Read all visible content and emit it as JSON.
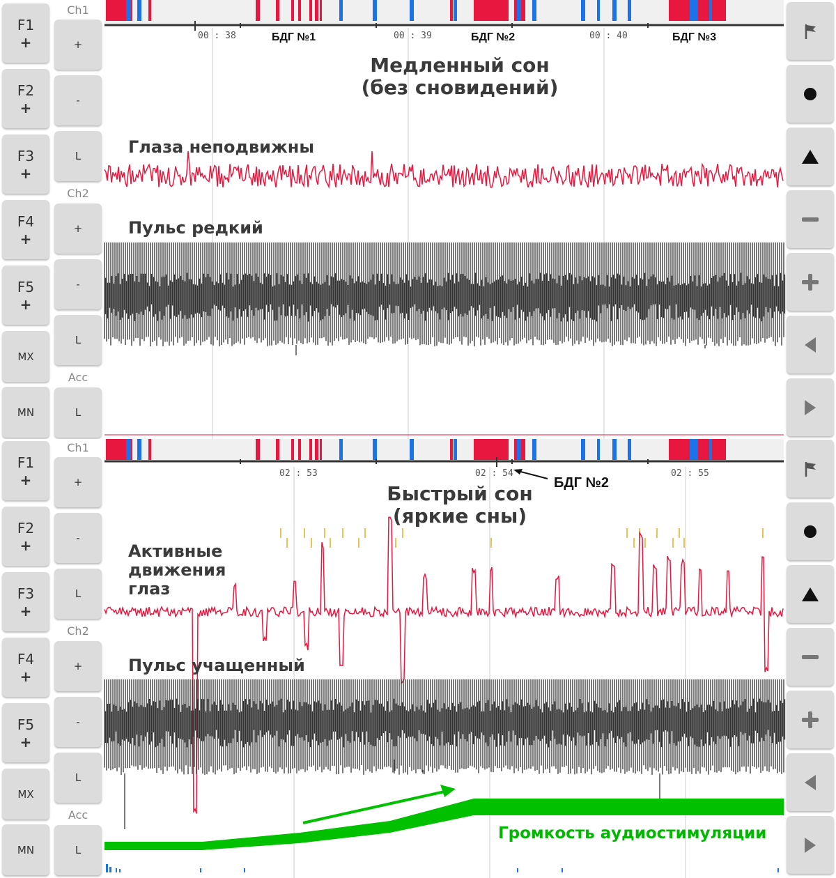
{
  "colors": {
    "eye_trace": "#e8173f",
    "pulse_trace": "#333333",
    "rem_marker": "#e8173f",
    "movement_marker": "#1a73e8",
    "volume_band": "#00c000",
    "button_bg": "#dcdcdc"
  },
  "left_buttons": [
    {
      "top": "F1",
      "bottom": "+"
    },
    {
      "top": "F2",
      "bottom": "+"
    },
    {
      "top": "F3",
      "bottom": "+"
    },
    {
      "top": "F4",
      "bottom": "+"
    },
    {
      "top": "F5",
      "bottom": "+"
    },
    {
      "top": "MX",
      "bottom": ""
    },
    {
      "top": "MN",
      "bottom": ""
    }
  ],
  "channel_labels": {
    "ch1": "Ch1",
    "ch2": "Ch2",
    "acc": "Acc"
  },
  "channel_buttons": [
    "+",
    "-",
    "L",
    "+",
    "-",
    "L",
    "L"
  ],
  "right_icons": [
    "flag-icon",
    "circle-icon",
    "triangle-icon",
    "minus-icon",
    "plus-icon",
    "arrow-left-icon",
    "arrow-right-icon"
  ],
  "top_panel": {
    "times": [
      "00 : 38",
      "00 : 39",
      "00 : 40"
    ],
    "bdg_labels": [
      "БДГ №1",
      "БДГ №2",
      "БДГ №3"
    ],
    "title_line1": "Медленный сон",
    "title_line2": "(без сновидений)",
    "eyes_label": "Глаза неподвижны",
    "pulse_label": "Пульс редкий"
  },
  "bottom_panel": {
    "times": [
      "02 : 53",
      "02 : 54",
      "02 : 55"
    ],
    "bdg_pointer": "БДГ №2",
    "title_line1": "Быстрый сон",
    "title_line2": "(яркие сны)",
    "eyes_label_1": "Активные",
    "eyes_label_2": "движения",
    "eyes_label_3": "глаз",
    "pulse_label": "Пульс учащенный",
    "volume_label": "Громкость аудиостимуляции"
  }
}
